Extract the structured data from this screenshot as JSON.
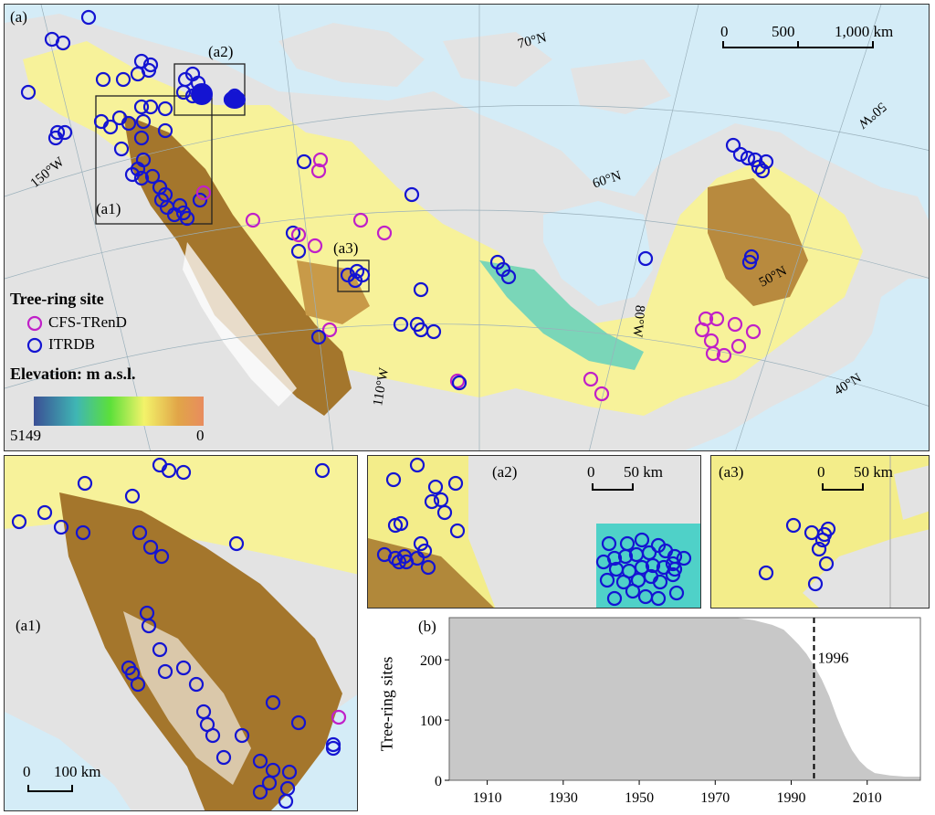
{
  "main_map": {
    "label": "(a)",
    "scale_bar": {
      "ticks": [
        "0",
        "500",
        "1,000 km"
      ]
    },
    "graticule": {
      "latitudes": [
        "70°N",
        "60°N",
        "50°N",
        "40°N"
      ],
      "longitudes": [
        "150°W",
        "110°W",
        "80°W",
        "50°W"
      ]
    },
    "inset_boxes": [
      "(a1)",
      "(a2)",
      "(a3)"
    ],
    "legend": {
      "title": "Tree-ring site",
      "items": [
        {
          "label": "CFS-TRenD",
          "color": "#c020c8"
        },
        {
          "label": "ITRDB",
          "color": "#1414d2"
        }
      ],
      "elevation_title": "Elevation: m a.s.l.",
      "elevation_min": "0",
      "elevation_max": "5149"
    }
  },
  "inset_a1": {
    "label": "(a1)",
    "scale_bar": {
      "ticks": [
        "0",
        "100 km"
      ]
    }
  },
  "inset_a2": {
    "label": "(a2)",
    "scale_bar": {
      "ticks": [
        "0",
        "50 km"
      ]
    }
  },
  "inset_a3": {
    "label": "(a3)",
    "scale_bar": {
      "ticks": [
        "0",
        "50 km"
      ]
    }
  },
  "colors": {
    "water": "#d4ecf7",
    "land_no_data": "#e3e3e3",
    "lowland": "#f7f29a",
    "highland": "#a4762c",
    "itrdb": "#1414d2",
    "cfs_trend": "#c020c8",
    "chart_fill": "#c8c8c8"
  },
  "chart_data": {
    "type": "area",
    "label": "(b)",
    "title": "",
    "xlabel": "",
    "ylabel": "Tree-ring sites",
    "xlim": [
      1900,
      2024
    ],
    "ylim": [
      0,
      270
    ],
    "x_ticks": [
      "1910",
      "1930",
      "1950",
      "1970",
      "1990",
      "2010"
    ],
    "y_ticks": [
      "0",
      "100",
      "200"
    ],
    "annotation": {
      "x": 1996,
      "label": "1996",
      "style": "dashed vertical line"
    },
    "x": [
      1900,
      1960,
      1965,
      1970,
      1975,
      1980,
      1985,
      1988,
      1990,
      1992,
      1994,
      1996,
      1998,
      2000,
      2002,
      2004,
      2006,
      2008,
      2010,
      2012,
      2016,
      2020,
      2024
    ],
    "values": [
      280,
      280,
      279,
      276,
      272,
      266,
      258,
      250,
      238,
      225,
      210,
      190,
      168,
      140,
      105,
      75,
      50,
      32,
      20,
      12,
      8,
      6,
      6
    ]
  }
}
